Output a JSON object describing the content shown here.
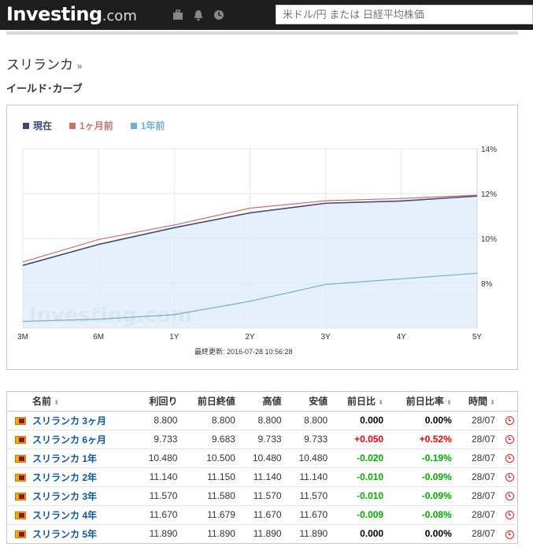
{
  "header": {
    "logo_main": "Investing",
    "logo_suffix": ".com",
    "search_placeholder": "米ドル/円 または 日経平均株価",
    "icons": [
      "briefcase-icon",
      "bell-icon",
      "clock-icon"
    ]
  },
  "page": {
    "title": "スリランカ",
    "title_arrow": "»",
    "subtitle": "イールド･カーブ"
  },
  "chart_data": {
    "type": "line",
    "categories": [
      "3M",
      "6M",
      "1Y",
      "2Y",
      "3Y",
      "4Y",
      "5Y"
    ],
    "series": [
      {
        "name": "現在",
        "color": "#3b4a7a",
        "values": [
          8.8,
          9.733,
          10.48,
          11.14,
          11.57,
          11.67,
          11.89
        ]
      },
      {
        "name": "1ヶ月前",
        "color": "#c8706a",
        "values": [
          8.95,
          9.95,
          10.6,
          11.35,
          11.68,
          11.78,
          11.93
        ]
      },
      {
        "name": "1年前",
        "color": "#6fb0cc",
        "values": [
          6.3,
          6.4,
          6.6,
          7.2,
          7.95,
          8.2,
          8.45
        ]
      }
    ],
    "ylim": [
      6.0,
      14.0
    ],
    "yticks": [
      "8%",
      "10%",
      "12%",
      "14%"
    ],
    "ytick_values": [
      8,
      10,
      12,
      14
    ],
    "grid": true,
    "legend_position": "top-left",
    "watermark": "Investing.com",
    "updated_label": "最終更新: 2016-07-28 10:56:28"
  },
  "table": {
    "headers": [
      "名前",
      "利回り",
      "前日終値",
      "高値",
      "安値",
      "前日比",
      "前日比率",
      "時間"
    ],
    "sort_glyph": "⬍",
    "rows": [
      {
        "name": "スリランカ 3ヶ月",
        "yield": "8.800",
        "prev": "8.800",
        "high": "8.800",
        "low": "8.800",
        "chg": "0.000",
        "chg_pct": "0.00%",
        "time": "28/07",
        "dir": "zero"
      },
      {
        "name": "スリランカ 6ヶ月",
        "yield": "9.733",
        "prev": "9.683",
        "high": "9.733",
        "low": "9.733",
        "chg": "+0.050",
        "chg_pct": "+0.52%",
        "time": "28/07",
        "dir": "pos"
      },
      {
        "name": "スリランカ 1年",
        "yield": "10.480",
        "prev": "10.500",
        "high": "10.480",
        "low": "10.480",
        "chg": "-0.020",
        "chg_pct": "-0.19%",
        "time": "28/07",
        "dir": "neg"
      },
      {
        "name": "スリランカ 2年",
        "yield": "11.140",
        "prev": "11.150",
        "high": "11.140",
        "low": "11.140",
        "chg": "-0.010",
        "chg_pct": "-0.09%",
        "time": "28/07",
        "dir": "neg"
      },
      {
        "name": "スリランカ 3年",
        "yield": "11.570",
        "prev": "11.580",
        "high": "11.570",
        "low": "11.570",
        "chg": "-0.010",
        "chg_pct": "-0.09%",
        "time": "28/07",
        "dir": "neg"
      },
      {
        "name": "スリランカ 4年",
        "yield": "11.670",
        "prev": "11.679",
        "high": "11.670",
        "low": "11.670",
        "chg": "-0.009",
        "chg_pct": "-0.08%",
        "time": "28/07",
        "dir": "neg"
      },
      {
        "name": "スリランカ 5年",
        "yield": "11.890",
        "prev": "11.890",
        "high": "11.890",
        "low": "11.890",
        "chg": "0.000",
        "chg_pct": "0.00%",
        "time": "28/07",
        "dir": "zero"
      }
    ]
  }
}
